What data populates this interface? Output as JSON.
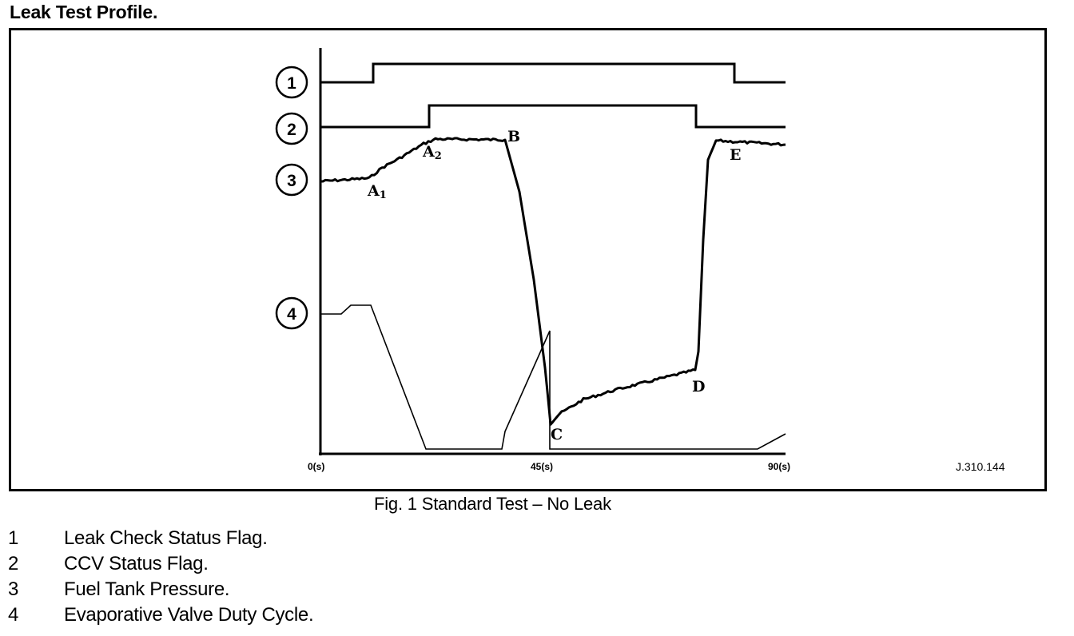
{
  "heading": "Leak Test Profile.",
  "figure": {
    "caption": "Fig. 1 Standard Test – No Leak",
    "reference": "J.310.144",
    "trace_markers": [
      "1",
      "2",
      "3",
      "4"
    ],
    "x_ticks": [
      "0(s)",
      "45(s)",
      "90(s)"
    ],
    "point_labels": {
      "A1": "A",
      "A1_sub": "1",
      "A2": "A",
      "A2_sub": "2",
      "B": "B",
      "C": "C",
      "D": "D",
      "E": "E"
    }
  },
  "legend": [
    {
      "num": "1",
      "text": "Leak Check Status Flag."
    },
    {
      "num": "2",
      "text": "CCV Status Flag."
    },
    {
      "num": "3",
      "text": "Fuel Tank Pressure."
    },
    {
      "num": "4",
      "text": "Evaporative Valve Duty Cycle."
    }
  ]
}
